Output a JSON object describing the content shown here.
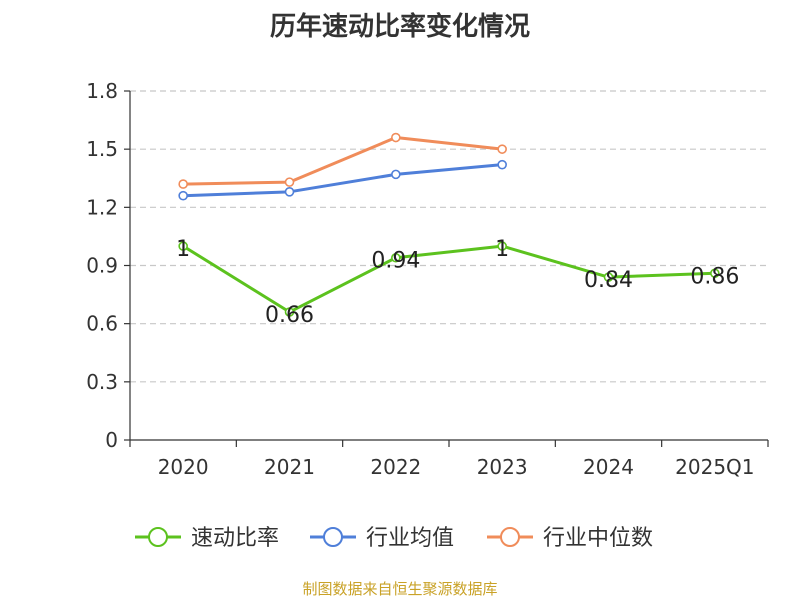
{
  "chart_data": {
    "type": "line",
    "title": "历年速动比率变化情况",
    "categories": [
      "2020",
      "2021",
      "2022",
      "2023",
      "2024",
      "2025Q1"
    ],
    "yticks": [
      "0",
      "0.3",
      "0.6",
      "0.9",
      "1.2",
      "1.5",
      "1.8"
    ],
    "ylim": [
      0,
      1.8
    ],
    "grid": true,
    "legend_position": "bottom",
    "series": [
      {
        "name": "速动比率",
        "color": "#5cc21e",
        "values": [
          1,
          0.66,
          0.94,
          1,
          0.84,
          0.86
        ],
        "labels": [
          "1",
          "0.66",
          "0.94",
          "1",
          "0.84",
          "0.86"
        ]
      },
      {
        "name": "行业均值",
        "color": "#4f7fd9",
        "values": [
          1.26,
          1.28,
          1.37,
          1.42,
          null,
          null
        ]
      },
      {
        "name": "行业中位数",
        "color": "#f08c5a",
        "values": [
          1.32,
          1.33,
          1.56,
          1.5,
          null,
          null
        ]
      }
    ]
  },
  "source_text": "制图数据来自恒生聚源数据库",
  "colors": {
    "source_text": "#c9a227",
    "axis": "#333333",
    "grid": "#c8c8c8"
  }
}
